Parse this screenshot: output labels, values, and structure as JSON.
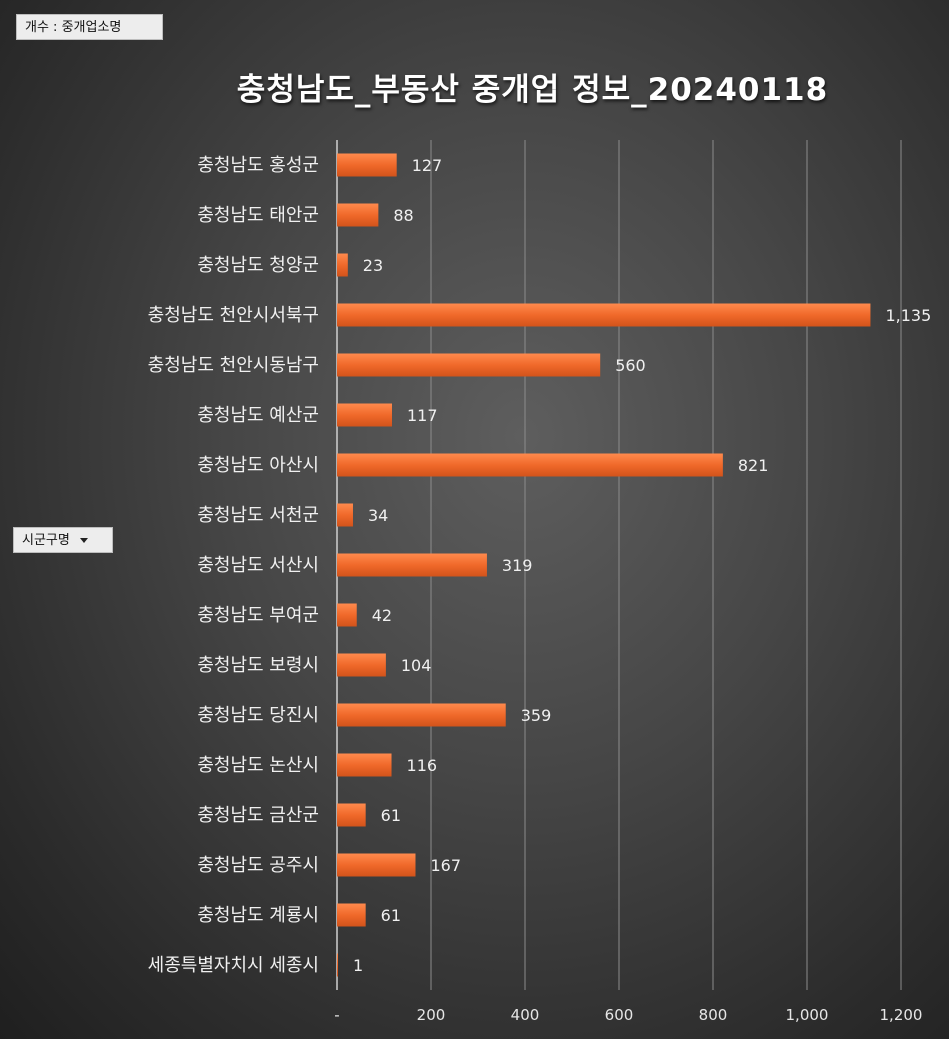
{
  "pivot": {
    "value_field": "개수 : 중개업소명",
    "axis_field": "시군구명"
  },
  "chart_data": {
    "type": "bar",
    "orientation": "horizontal",
    "title": "충청남도_부동산 중개업 정보_20240118",
    "categories": [
      "충청남도 홍성군",
      "충청남도 태안군",
      "충청남도 청양군",
      "충청남도 천안시서북구",
      "충청남도 천안시동남구",
      "충청남도 예산군",
      "충청남도 아산시",
      "충청남도 서천군",
      "충청남도 서산시",
      "충청남도 부여군",
      "충청남도 보령시",
      "충청남도 당진시",
      "충청남도 논산시",
      "충청남도 금산군",
      "충청남도 공주시",
      "충청남도 계룡시",
      "세종특별자치시 세종시"
    ],
    "values": [
      127,
      88,
      23,
      1135,
      560,
      117,
      821,
      34,
      319,
      42,
      104,
      359,
      116,
      61,
      167,
      61,
      1
    ],
    "value_labels": [
      "127",
      "88",
      "23",
      "1,135",
      "560",
      "117",
      "821",
      "34",
      "319",
      "42",
      "104",
      "359",
      "116",
      "61",
      "167",
      "61",
      "1"
    ],
    "xlim": [
      0,
      1200
    ],
    "x_ticks": [
      0,
      200,
      400,
      600,
      800,
      1000,
      1200
    ],
    "x_tick_labels": [
      "-",
      "200",
      "400",
      "600",
      "800",
      "1,000",
      "1,200"
    ],
    "grid": true,
    "legend": "none",
    "bar_color": "#ee6a2c"
  }
}
